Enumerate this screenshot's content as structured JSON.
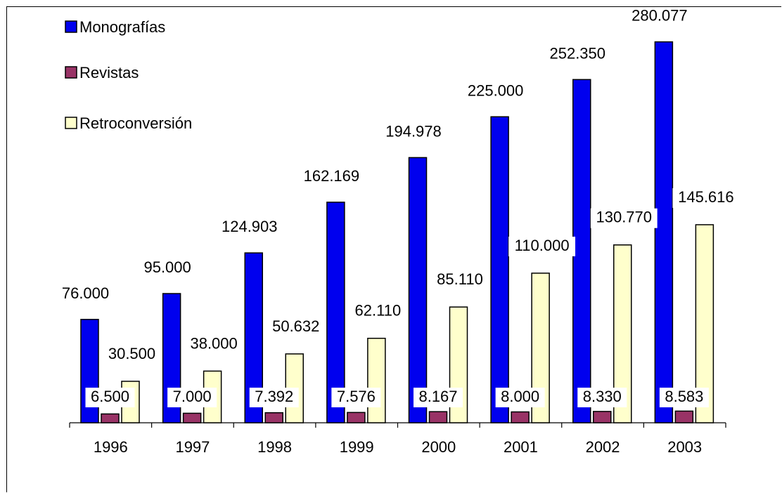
{
  "chart_data": {
    "type": "bar",
    "title": "",
    "xlabel": "",
    "ylabel": "",
    "categories": [
      "1996",
      "1997",
      "1998",
      "1999",
      "2000",
      "2001",
      "2002",
      "2003"
    ],
    "ylim": [
      0,
      300000
    ],
    "grid": false,
    "legend_position": "top-left",
    "series": [
      {
        "name": "Monografías",
        "color": "#0000ee",
        "values": [
          76000,
          95000,
          124903,
          162169,
          194978,
          225000,
          252350,
          280077
        ],
        "labels": [
          "76.000",
          "95.000",
          "124.903",
          "162.169",
          "194.978",
          "225.000",
          "252.350",
          "280.077"
        ]
      },
      {
        "name": "Revistas",
        "color": "#993366",
        "values": [
          6500,
          7000,
          7392,
          7576,
          8167,
          8000,
          8330,
          8583
        ],
        "labels": [
          "6.500",
          "7.000",
          "7.392",
          "7.576",
          "8.167",
          "8.000",
          "8.330",
          "8.583"
        ]
      },
      {
        "name": "Retroconversión",
        "color": "#ffffcc",
        "values": [
          30500,
          38000,
          50632,
          62110,
          85110,
          110000,
          130770,
          145616
        ],
        "labels": [
          "30.500",
          "38.000",
          "50.632",
          "62.110",
          "85.110",
          "110.000",
          "130.770",
          "145.616"
        ]
      }
    ]
  }
}
